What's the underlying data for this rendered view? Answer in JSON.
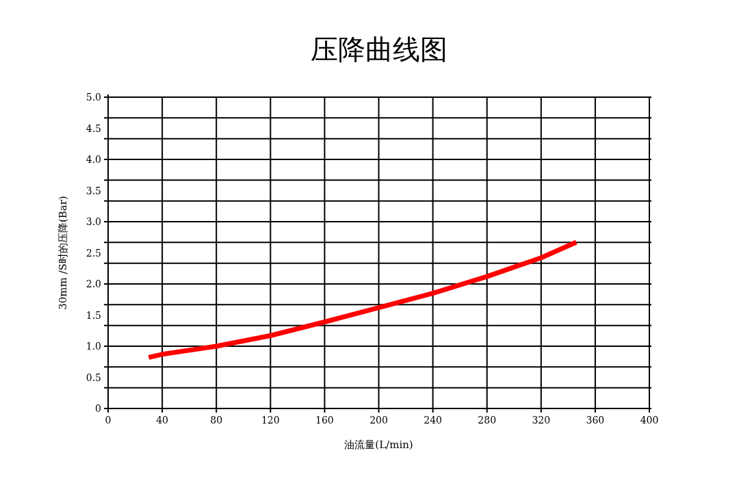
{
  "chart_data": {
    "type": "line",
    "title": "压降曲线图",
    "xlabel": "油流量(L/min)",
    "ylabel": "30mm /S时的压降(Bar)",
    "series": [
      {
        "color": "#ff0000",
        "x": [
          30,
          40,
          80,
          120,
          160,
          200,
          240,
          280,
          320,
          346
        ],
        "values": [
          0.82,
          0.87,
          1.0,
          1.17,
          1.39,
          1.62,
          1.85,
          2.12,
          2.42,
          2.67
        ]
      }
    ],
    "xlim": [
      0,
      400
    ],
    "xticks": [
      0,
      40,
      80,
      120,
      160,
      200,
      240,
      280,
      320,
      360,
      400
    ],
    "ylim": [
      0,
      5
    ],
    "yticks": [
      {
        "value": 0,
        "label": "0"
      },
      {
        "value": 0.5,
        "label": "0.5"
      },
      {
        "value": 1,
        "label": "1.0"
      },
      {
        "value": 1.5,
        "label": "1.5"
      },
      {
        "value": 2,
        "label": "2.0"
      },
      {
        "value": 2.5,
        "label": "2.5"
      },
      {
        "value": 3,
        "label": "3.0"
      },
      {
        "value": 3.5,
        "label": "3.5"
      },
      {
        "value": 4,
        "label": "4.0"
      },
      {
        "value": 4.5,
        "label": "4.5"
      },
      {
        "value": 5,
        "label": "5.0"
      },
      {
        "value": 0.333,
        "label": null
      },
      {
        "value": 0.667,
        "label": null
      },
      {
        "value": 1.333,
        "label": null
      },
      {
        "value": 1.667,
        "label": null
      },
      {
        "value": 2.333,
        "label": null
      },
      {
        "value": 2.667,
        "label": null
      },
      {
        "value": 3.333,
        "label": null
      },
      {
        "value": 3.667,
        "label": null
      },
      {
        "value": 4.333,
        "label": null
      },
      {
        "value": 4.667,
        "label": null
      }
    ],
    "grid": true,
    "marker": "none",
    "line_style": "solid"
  }
}
